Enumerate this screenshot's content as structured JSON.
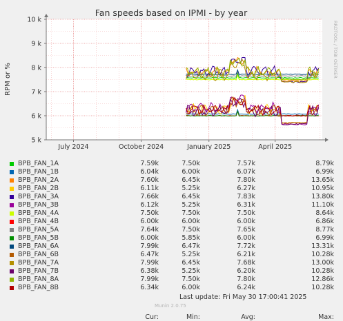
{
  "chart_data": {
    "type": "line",
    "title": "Fan speeds based on IPMI - by year",
    "ylabel": "RPM or %",
    "ylim": [
      5000,
      10000
    ],
    "yticks": [
      {
        "value": 5000,
        "label": "5 k"
      },
      {
        "value": 6000,
        "label": "6 k"
      },
      {
        "value": 7000,
        "label": "7 k"
      },
      {
        "value": 8000,
        "label": "8 k"
      },
      {
        "value": 9000,
        "label": "9 k"
      },
      {
        "value": 10000,
        "label": "10 k"
      }
    ],
    "xlim": [
      "2024-05-25",
      "2025-06-04"
    ],
    "xticks": [
      {
        "date": "2024-07-01",
        "label": "July 2024"
      },
      {
        "date": "2024-10-01",
        "label": "October 2024"
      },
      {
        "date": "2025-01-01",
        "label": "January 2025"
      },
      {
        "date": "2025-04-01",
        "label": "April 2025"
      }
    ],
    "watermark": "RRDTOOL / TOBI OETIKER",
    "series": [
      {
        "name": "BPB_FAN_1A",
        "color": "#00cc00",
        "pattern": "flat",
        "cur": "7.59k",
        "min": "7.50k",
        "avg": "7.57k",
        "max": "8.79k",
        "level": 7570,
        "low": 7500
      },
      {
        "name": "BPB_FAN_1B",
        "color": "#0066b3",
        "pattern": "flat",
        "cur": "6.04k",
        "min": "6.00k",
        "avg": "6.07k",
        "max": "6.99k",
        "level": 6070,
        "low": 6000
      },
      {
        "name": "BPB_FAN_2A",
        "color": "#ff8000",
        "pattern": "wavy",
        "cur": "7.60k",
        "min": "6.45k",
        "avg": "7.80k",
        "max": "13.65k",
        "level": 7800,
        "low": 7450
      },
      {
        "name": "BPB_FAN_2B",
        "color": "#ffcc00",
        "pattern": "wavy",
        "cur": "6.11k",
        "min": "5.25k",
        "avg": "6.27k",
        "max": "10.95k",
        "level": 6270,
        "low": 5700
      },
      {
        "name": "BPB_FAN_3A",
        "color": "#330099",
        "pattern": "wavy",
        "cur": "7.66k",
        "min": "6.45k",
        "avg": "7.83k",
        "max": "13.80k",
        "level": 7830,
        "low": 7400
      },
      {
        "name": "BPB_FAN_3B",
        "color": "#990099",
        "pattern": "wavy",
        "cur": "6.12k",
        "min": "5.25k",
        "avg": "6.31k",
        "max": "11.10k",
        "level": 6310,
        "low": 5650
      },
      {
        "name": "BPB_FAN_4A",
        "color": "#ccff00",
        "pattern": "flat",
        "cur": "7.50k",
        "min": "7.50k",
        "avg": "7.50k",
        "max": "8.64k",
        "level": 7500,
        "low": 7500
      },
      {
        "name": "BPB_FAN_4B",
        "color": "#ff0000",
        "pattern": "flat",
        "cur": "6.00k",
        "min": "6.00k",
        "avg": "6.00k",
        "max": "6.86k",
        "level": 6000,
        "low": 6000
      },
      {
        "name": "BPB_FAN_5A",
        "color": "#808080",
        "pattern": "flat",
        "cur": "7.64k",
        "min": "7.50k",
        "avg": "7.65k",
        "max": "8.77k",
        "level": 7650,
        "low": 7550
      },
      {
        "name": "BPB_FAN_5B",
        "color": "#008f00",
        "pattern": "flat",
        "cur": "6.00k",
        "min": "5.85k",
        "avg": "6.00k",
        "max": "6.99k",
        "level": 6000,
        "low": 5950
      },
      {
        "name": "BPB_FAN_6A",
        "color": "#00487d",
        "pattern": "flat",
        "cur": "7.99k",
        "min": "6.47k",
        "avg": "7.72k",
        "max": "13.31k",
        "level": 7720,
        "low": 7500
      },
      {
        "name": "BPB_FAN_6B",
        "color": "#b35a00",
        "pattern": "wavy",
        "cur": "6.47k",
        "min": "5.25k",
        "avg": "6.21k",
        "max": "10.28k",
        "level": 6210,
        "low": 5700
      },
      {
        "name": "BPB_FAN_7A",
        "color": "#b38f00",
        "pattern": "wavy",
        "cur": "7.99k",
        "min": "6.45k",
        "avg": "7.68k",
        "max": "13.00k",
        "level": 7680,
        "low": 7400
      },
      {
        "name": "BPB_FAN_7B",
        "color": "#6b006b",
        "pattern": "wavy",
        "cur": "6.38k",
        "min": "5.25k",
        "avg": "6.20k",
        "max": "10.28k",
        "level": 6200,
        "low": 5650
      },
      {
        "name": "BPB_FAN_8A",
        "color": "#8fb300",
        "pattern": "wavy",
        "cur": "7.99k",
        "min": "7.50k",
        "avg": "7.80k",
        "max": "12.86k",
        "level": 7800,
        "low": 7500
      },
      {
        "name": "BPB_FAN_8B",
        "color": "#b30000",
        "pattern": "wavy",
        "cur": "6.34k",
        "min": "6.00k",
        "avg": "6.24k",
        "max": "10.28k",
        "level": 6240,
        "low": 6000
      }
    ],
    "data_range": [
      "2024-12-01",
      "2025-05-30"
    ]
  },
  "legend": {
    "header_cur": "Cur:",
    "header_min": "Min:",
    "header_avg": "Avg:",
    "header_max": "Max:"
  },
  "footer": {
    "last_update": "Last update: Fri May 30 17:00:41 2025",
    "munin": "Munin 2.0.75"
  }
}
